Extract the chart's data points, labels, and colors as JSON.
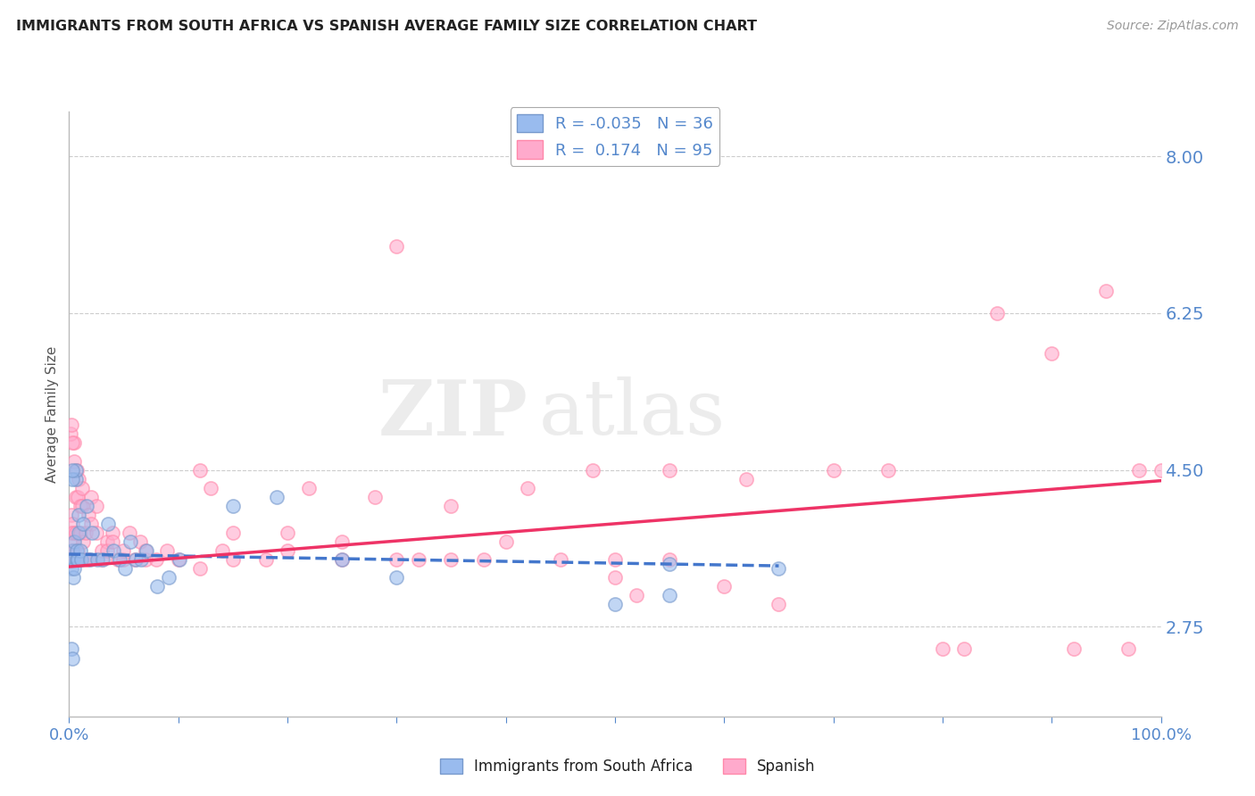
{
  "title": "IMMIGRANTS FROM SOUTH AFRICA VS SPANISH AVERAGE FAMILY SIZE CORRELATION CHART",
  "source": "Source: ZipAtlas.com",
  "ylabel": "Average Family Size",
  "watermark_zip": "ZIP",
  "watermark_atlas": "atlas",
  "xmin": 0.0,
  "xmax": 1.0,
  "ymin": 1.75,
  "ymax": 8.5,
  "yticks": [
    2.75,
    4.5,
    6.25,
    8.0
  ],
  "ytick_labels": [
    "2.75",
    "4.50",
    "6.25",
    "8.00"
  ],
  "blue_color": "#99BBEE",
  "pink_color": "#FFAACC",
  "blue_edge_color": "#7799CC",
  "pink_edge_color": "#FF88AA",
  "blue_line_color": "#4477CC",
  "pink_line_color": "#EE3366",
  "axis_color": "#5588CC",
  "title_color": "#222222",
  "blue_scatter": [
    [
      0.001,
      3.5
    ],
    [
      0.002,
      3.4
    ],
    [
      0.003,
      3.6
    ],
    [
      0.004,
      3.5
    ],
    [
      0.004,
      3.3
    ],
    [
      0.005,
      3.4
    ],
    [
      0.005,
      3.7
    ],
    [
      0.006,
      4.4
    ],
    [
      0.006,
      4.5
    ],
    [
      0.007,
      3.5
    ],
    [
      0.007,
      3.6
    ],
    [
      0.008,
      3.5
    ],
    [
      0.009,
      4.0
    ],
    [
      0.009,
      3.8
    ],
    [
      0.01,
      3.6
    ],
    [
      0.011,
      3.5
    ],
    [
      0.013,
      3.9
    ],
    [
      0.016,
      4.1
    ],
    [
      0.019,
      3.5
    ],
    [
      0.021,
      3.8
    ],
    [
      0.026,
      3.5
    ],
    [
      0.031,
      3.5
    ],
    [
      0.036,
      3.9
    ],
    [
      0.041,
      3.6
    ],
    [
      0.046,
      3.5
    ],
    [
      0.051,
      3.4
    ],
    [
      0.056,
      3.7
    ],
    [
      0.061,
      3.5
    ],
    [
      0.066,
      3.5
    ],
    [
      0.071,
      3.6
    ],
    [
      0.081,
      3.2
    ],
    [
      0.091,
      3.3
    ],
    [
      0.101,
      3.5
    ],
    [
      0.003,
      4.4
    ],
    [
      0.003,
      4.5
    ],
    [
      0.15,
      4.1
    ],
    [
      0.19,
      4.2
    ],
    [
      0.55,
      3.45
    ],
    [
      0.65,
      3.4
    ],
    [
      0.002,
      2.5
    ],
    [
      0.003,
      2.4
    ],
    [
      0.25,
      3.5
    ],
    [
      0.3,
      3.3
    ],
    [
      0.5,
      3.0
    ],
    [
      0.55,
      3.1
    ]
  ],
  "pink_scatter": [
    [
      0.001,
      3.8
    ],
    [
      0.001,
      3.6
    ],
    [
      0.002,
      3.5
    ],
    [
      0.002,
      4.0
    ],
    [
      0.003,
      3.9
    ],
    [
      0.003,
      3.7
    ],
    [
      0.004,
      3.5
    ],
    [
      0.004,
      3.8
    ],
    [
      0.005,
      3.6
    ],
    [
      0.005,
      4.6
    ],
    [
      0.005,
      4.8
    ],
    [
      0.006,
      3.5
    ],
    [
      0.006,
      4.2
    ],
    [
      0.006,
      3.8
    ],
    [
      0.007,
      3.5
    ],
    [
      0.007,
      4.5
    ],
    [
      0.008,
      3.6
    ],
    [
      0.008,
      4.2
    ],
    [
      0.009,
      4.4
    ],
    [
      0.01,
      3.8
    ],
    [
      0.01,
      4.1
    ],
    [
      0.012,
      4.1
    ],
    [
      0.012,
      4.3
    ],
    [
      0.013,
      3.7
    ],
    [
      0.015,
      3.8
    ],
    [
      0.015,
      3.5
    ],
    [
      0.018,
      4.0
    ],
    [
      0.018,
      3.5
    ],
    [
      0.02,
      3.9
    ],
    [
      0.02,
      4.2
    ],
    [
      0.025,
      3.8
    ],
    [
      0.025,
      4.1
    ],
    [
      0.03,
      3.5
    ],
    [
      0.03,
      3.6
    ],
    [
      0.035,
      3.7
    ],
    [
      0.035,
      3.6
    ],
    [
      0.04,
      3.8
    ],
    [
      0.04,
      3.7
    ],
    [
      0.045,
      3.5
    ],
    [
      0.05,
      3.5
    ],
    [
      0.05,
      3.6
    ],
    [
      0.055,
      3.8
    ],
    [
      0.06,
      3.5
    ],
    [
      0.065,
      3.7
    ],
    [
      0.07,
      3.5
    ],
    [
      0.07,
      3.6
    ],
    [
      0.08,
      3.5
    ],
    [
      0.09,
      3.6
    ],
    [
      0.1,
      3.5
    ],
    [
      0.12,
      4.5
    ],
    [
      0.12,
      3.4
    ],
    [
      0.13,
      4.3
    ],
    [
      0.14,
      3.6
    ],
    [
      0.15,
      3.5
    ],
    [
      0.15,
      3.8
    ],
    [
      0.18,
      3.5
    ],
    [
      0.2,
      3.6
    ],
    [
      0.2,
      3.8
    ],
    [
      0.22,
      4.3
    ],
    [
      0.25,
      3.5
    ],
    [
      0.25,
      3.7
    ],
    [
      0.28,
      4.2
    ],
    [
      0.3,
      3.5
    ],
    [
      0.3,
      7.0
    ],
    [
      0.32,
      3.5
    ],
    [
      0.35,
      3.5
    ],
    [
      0.35,
      4.1
    ],
    [
      0.38,
      3.5
    ],
    [
      0.4,
      3.7
    ],
    [
      0.42,
      4.3
    ],
    [
      0.45,
      3.5
    ],
    [
      0.48,
      4.5
    ],
    [
      0.5,
      3.5
    ],
    [
      0.5,
      3.3
    ],
    [
      0.52,
      3.1
    ],
    [
      0.55,
      3.5
    ],
    [
      0.55,
      4.5
    ],
    [
      0.6,
      3.2
    ],
    [
      0.62,
      4.4
    ],
    [
      0.65,
      3.0
    ],
    [
      0.7,
      4.5
    ],
    [
      0.75,
      4.5
    ],
    [
      0.8,
      2.5
    ],
    [
      0.82,
      2.5
    ],
    [
      0.85,
      6.25
    ],
    [
      0.9,
      5.8
    ],
    [
      0.92,
      2.5
    ],
    [
      0.95,
      6.5
    ],
    [
      0.97,
      2.5
    ],
    [
      0.98,
      4.5
    ],
    [
      1.0,
      4.5
    ],
    [
      0.001,
      4.9
    ],
    [
      0.002,
      5.0
    ],
    [
      0.003,
      4.8
    ]
  ],
  "blue_trend_x": [
    0.0,
    0.65
  ],
  "blue_trend_y": [
    3.56,
    3.43
  ],
  "pink_trend_x": [
    0.0,
    1.0
  ],
  "pink_trend_y": [
    3.42,
    4.38
  ],
  "grid_dash_color": "#CCCCCC"
}
